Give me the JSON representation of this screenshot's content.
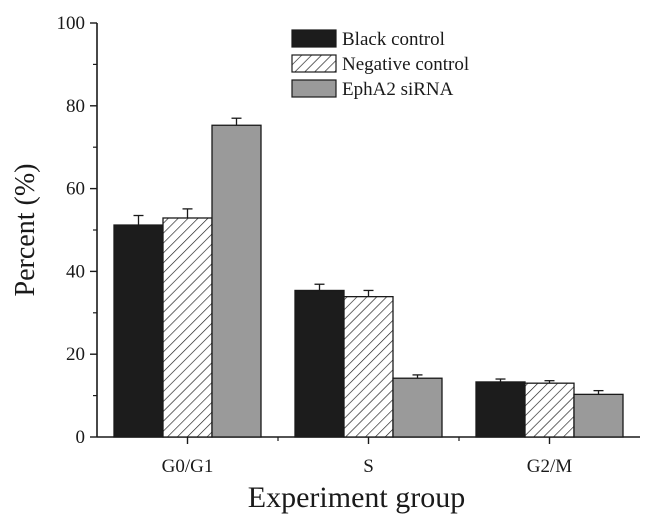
{
  "chart_data": {
    "type": "bar",
    "title": "",
    "xlabel": "Experiment group",
    "ylabel": "Percent (%)",
    "ylim": [
      0,
      100
    ],
    "yticks": [
      0,
      20,
      40,
      60,
      80,
      100
    ],
    "categories": [
      "G0/G1",
      "S",
      "G2/M"
    ],
    "series": [
      {
        "name": "Black control",
        "values": [
          51.2,
          35.4,
          13.3
        ],
        "errors": [
          2.3,
          1.5,
          0.7
        ],
        "color": "#1c1c1c",
        "pattern": "solid"
      },
      {
        "name": "Negative control",
        "values": [
          52.9,
          33.9,
          13.0
        ],
        "errors": [
          2.2,
          1.5,
          0.6
        ],
        "color": "#ffffff",
        "pattern": "diagonal-hatch"
      },
      {
        "name": "EphA2 siRNA",
        "values": [
          75.3,
          14.2,
          10.3
        ],
        "errors": [
          1.7,
          0.8,
          0.9
        ],
        "color": "#9a9a9a",
        "pattern": "solid"
      }
    ],
    "grid": false,
    "legend_position": "top-right"
  }
}
